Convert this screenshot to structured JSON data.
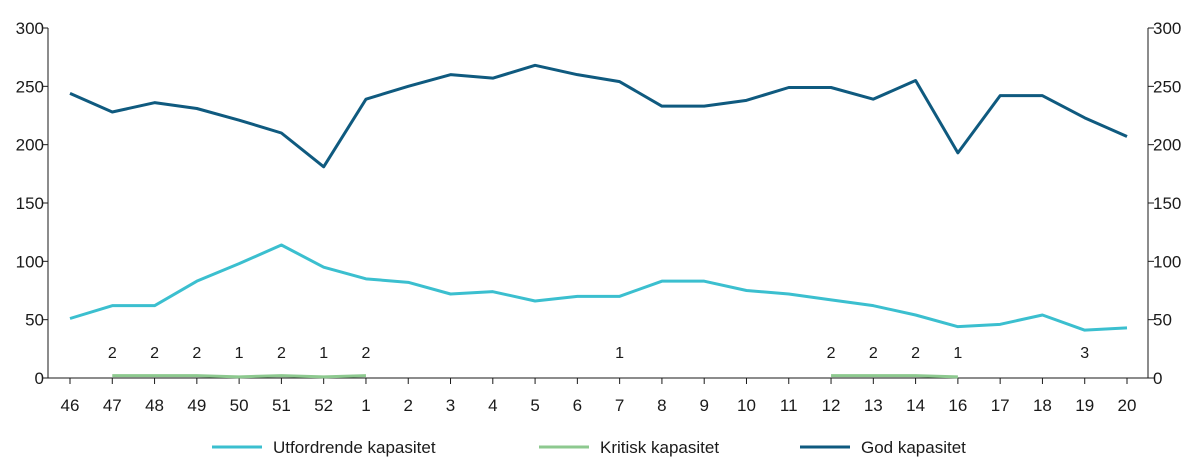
{
  "chart_data": {
    "type": "line",
    "title": "",
    "xlabel": "",
    "ylabel": "",
    "categories": [
      "46",
      "47",
      "48",
      "49",
      "50",
      "51",
      "52",
      "1",
      "2",
      "3",
      "4",
      "5",
      "6",
      "7",
      "8",
      "9",
      "10",
      "11",
      "12",
      "13",
      "14",
      "16",
      "17",
      "18",
      "19",
      "20"
    ],
    "ylim": [
      0,
      300
    ],
    "yticks": [
      0,
      50,
      100,
      150,
      200,
      250,
      300
    ],
    "grid": false,
    "legend_position": "bottom",
    "series": [
      {
        "name": "Utfordrende kapasitet",
        "color": "#3bbfcf",
        "values": [
          51,
          62,
          62,
          83,
          98,
          114,
          95,
          85,
          82,
          72,
          74,
          66,
          70,
          70,
          83,
          83,
          75,
          72,
          67,
          62,
          54,
          44,
          46,
          54,
          41,
          43
        ]
      },
      {
        "name": "Kritisk kapasitet",
        "color": "#8dc98f",
        "values": [
          null,
          2,
          2,
          2,
          1,
          2,
          1,
          2,
          null,
          null,
          null,
          null,
          null,
          null,
          null,
          null,
          null,
          null,
          2,
          2,
          2,
          1,
          null,
          null,
          null,
          null
        ]
      },
      {
        "name": "God kapasitet",
        "color": "#0f5a7f",
        "values": [
          244,
          228,
          236,
          231,
          221,
          210,
          181,
          239,
          250,
          260,
          257,
          268,
          260,
          254,
          233,
          233,
          238,
          249,
          249,
          239,
          255,
          193,
          242,
          242,
          223,
          207
        ]
      }
    ],
    "annotations": [
      {
        "category": "47",
        "text": "2"
      },
      {
        "category": "48",
        "text": "2"
      },
      {
        "category": "49",
        "text": "2"
      },
      {
        "category": "50",
        "text": "1"
      },
      {
        "category": "51",
        "text": "2"
      },
      {
        "category": "52",
        "text": "1"
      },
      {
        "category": "1",
        "text": "2"
      },
      {
        "category": "7",
        "text": "1"
      },
      {
        "category": "12",
        "text": "2"
      },
      {
        "category": "13",
        "text": "2"
      },
      {
        "category": "14",
        "text": "2"
      },
      {
        "category": "16",
        "text": "1"
      },
      {
        "category": "19",
        "text": "3"
      }
    ]
  }
}
